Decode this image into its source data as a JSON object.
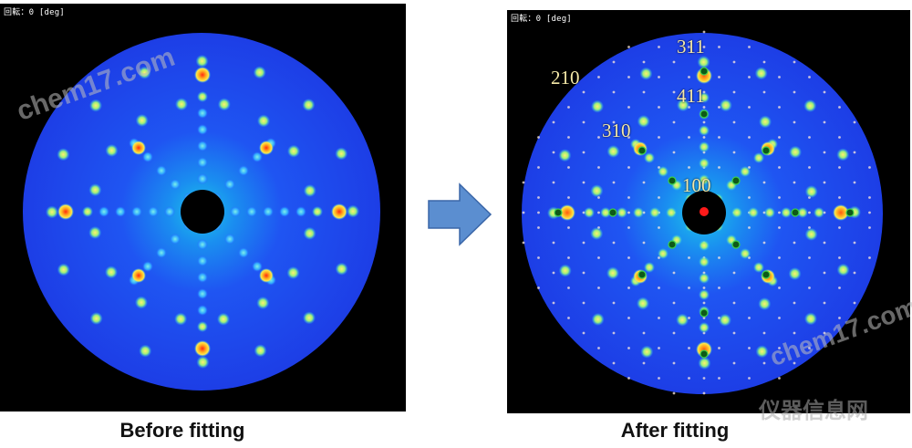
{
  "left_panel": {
    "rotation_label": "回転：0 [deg]",
    "caption": "Before fitting"
  },
  "right_panel": {
    "rotation_label": "回転：0 [deg]",
    "caption": "After fitting",
    "miller_indices": [
      "311",
      "210",
      "411",
      "310",
      "100"
    ]
  },
  "watermarks": {
    "left": "chem17.com",
    "right_top": "chem17.com",
    "right_bottom": "仪器信息网"
  },
  "colors": {
    "pattern_blue": "#1f3df0",
    "spot_hot": "#ff3b1a",
    "spot_warm": "#ffe14a",
    "fit_marker": "#1b8a2e",
    "arrow": "#5b8ed0"
  }
}
